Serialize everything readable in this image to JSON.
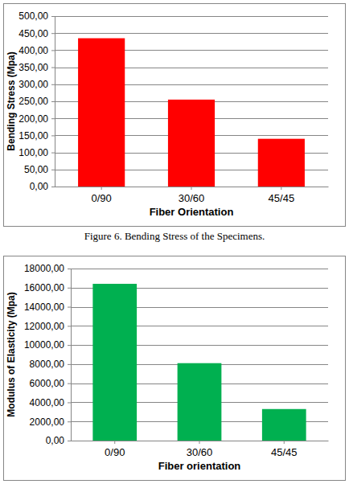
{
  "chart_data": [
    {
      "type": "bar",
      "title": "Figure 6. Bending Stress of the Specimens.",
      "x_label": "Fiber Orientation",
      "y_label": "Bending Stress (Mpa)",
      "categories": [
        "0/90",
        "30/60",
        "45/45"
      ],
      "values": [
        435,
        255,
        140
      ],
      "color": "#ff0000",
      "ylim": [
        0,
        500
      ],
      "yticks": [
        {
          "value": 0,
          "label": "0,00"
        },
        {
          "value": 50,
          "label": "50,00"
        },
        {
          "value": 100,
          "label": "100,00"
        },
        {
          "value": 150,
          "label": "150,00"
        },
        {
          "value": 200,
          "label": "200,00"
        },
        {
          "value": 250,
          "label": "250,00"
        },
        {
          "value": 300,
          "label": "300,00"
        },
        {
          "value": 350,
          "label": "350,00"
        },
        {
          "value": 400,
          "label": "400,00"
        },
        {
          "value": 450,
          "label": "450,00"
        },
        {
          "value": 500,
          "label": "500,00"
        }
      ],
      "grid": true
    },
    {
      "type": "bar",
      "x_label": "Fiber orientation",
      "y_label": "Modulus of Elasticity (Mpa)",
      "categories": [
        "0/90",
        "30/60",
        "45/45"
      ],
      "values": [
        16400,
        8100,
        3300
      ],
      "color": "#00b050",
      "ylim": [
        0,
        18000
      ],
      "yticks": [
        {
          "value": 0,
          "label": "0,00"
        },
        {
          "value": 2000,
          "label": "2000,00"
        },
        {
          "value": 4000,
          "label": "4000,00"
        },
        {
          "value": 6000,
          "label": "6000,00"
        },
        {
          "value": 8000,
          "label": "8000,00"
        },
        {
          "value": 10000,
          "label": "10000,00"
        },
        {
          "value": 12000,
          "label": "12000,00"
        },
        {
          "value": 14000,
          "label": "14000,00"
        },
        {
          "value": 16000,
          "label": "16000,00"
        },
        {
          "value": 18000,
          "label": "18000,00"
        }
      ],
      "grid": true
    }
  ]
}
